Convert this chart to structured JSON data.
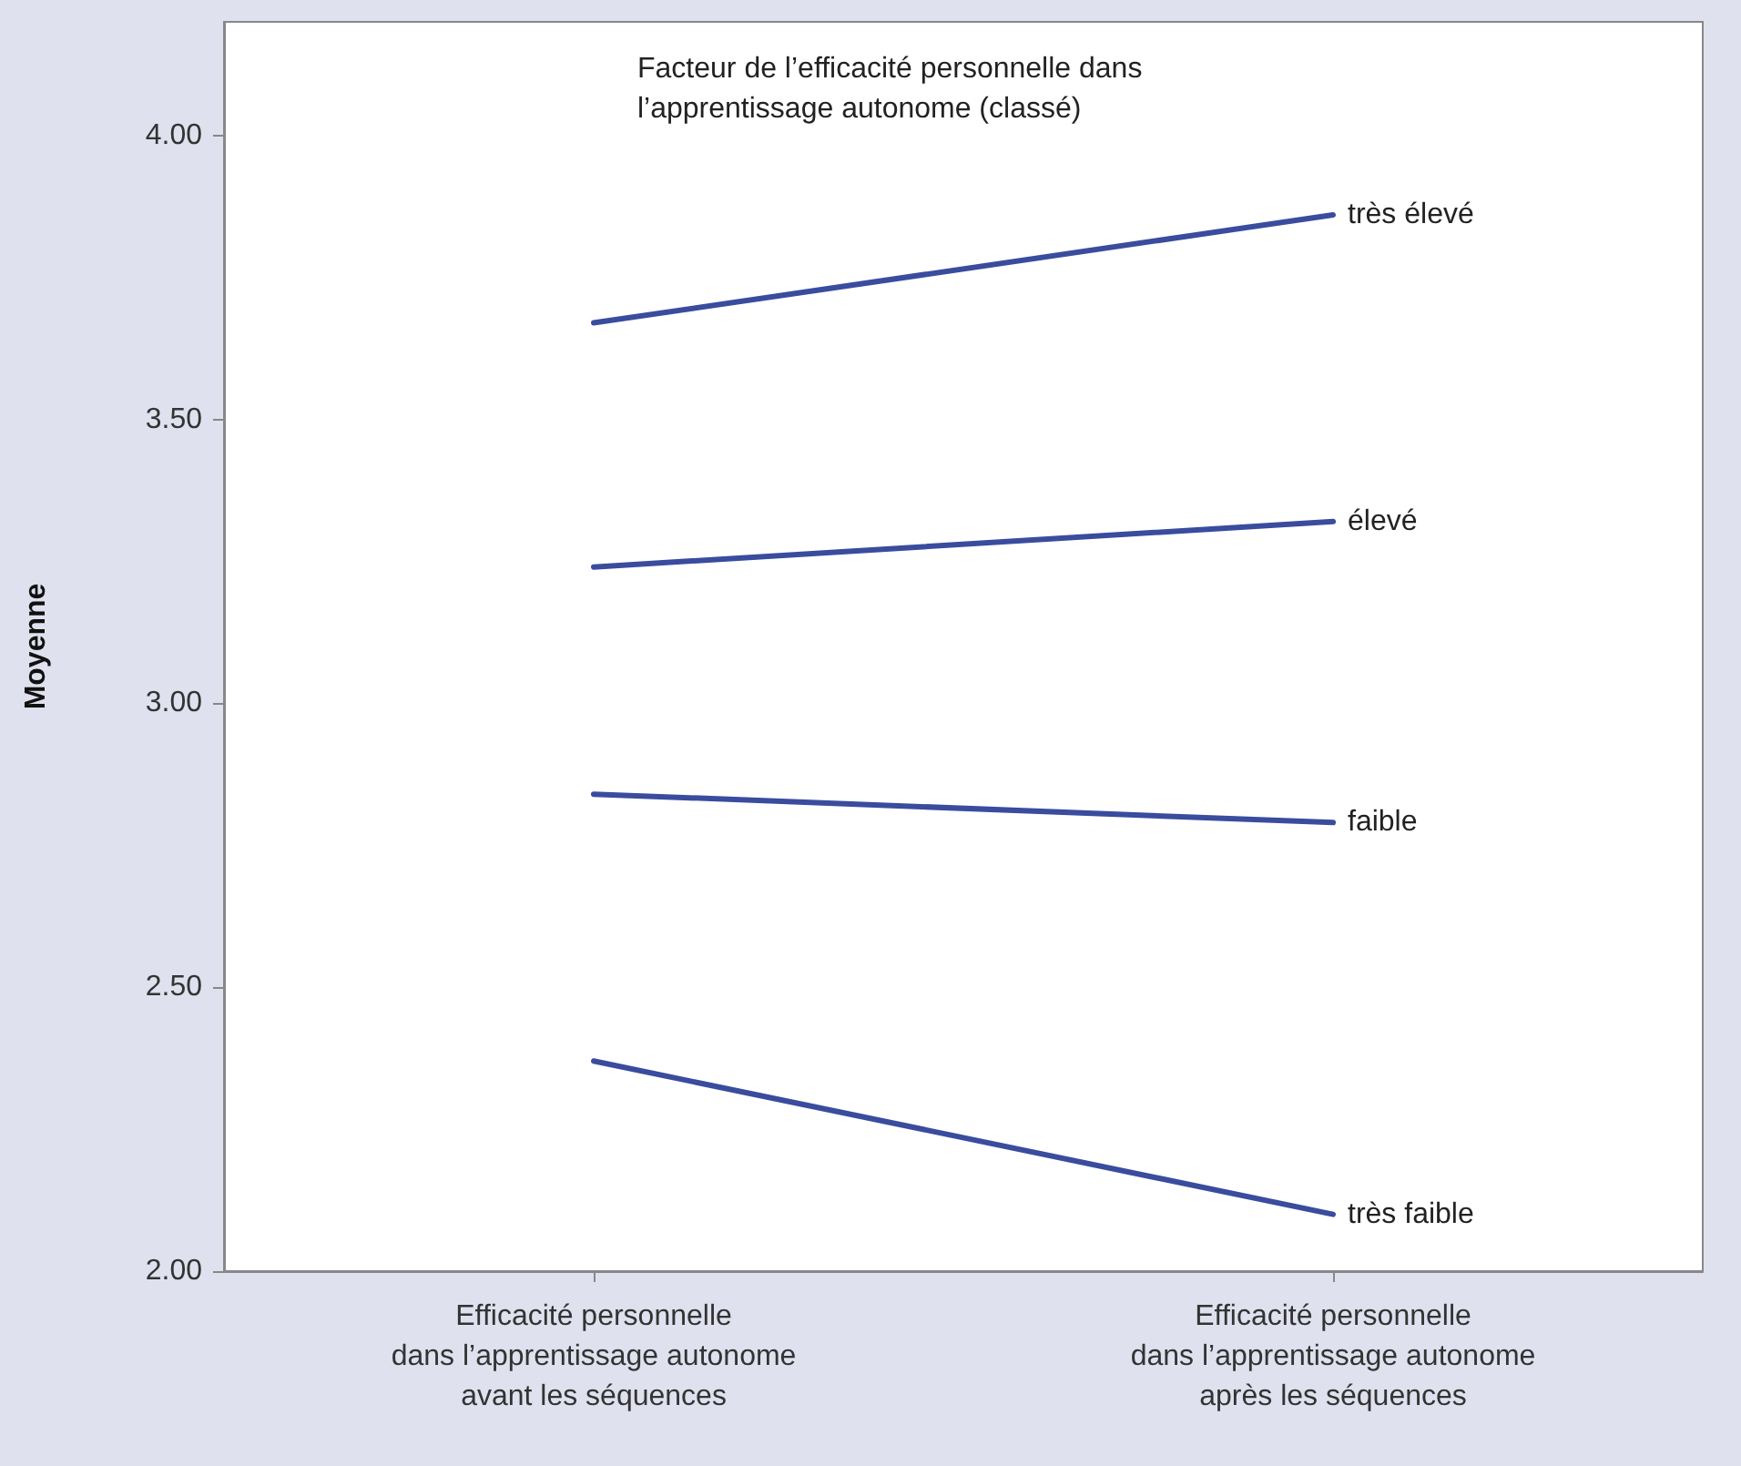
{
  "chart_data": {
    "type": "line",
    "legend_title": "Facteur de l’efficacité personnelle dans l’apprentissage autonome (classé)",
    "ylabel": "Moyenne",
    "categories": [
      "Efficacité personnelle\ndans l’apprentissage autonome\navant les séquences",
      "Efficacité personnelle\ndans l’apprentissage autonome\naprès les séquences"
    ],
    "series": [
      {
        "name": "très élevé",
        "color": "#3a4c9e",
        "values": [
          3.67,
          3.86
        ]
      },
      {
        "name": "élevé",
        "color": "#3a4c9e",
        "values": [
          3.24,
          3.32
        ]
      },
      {
        "name": "faible",
        "color": "#3a4c9e",
        "values": [
          2.84,
          2.79
        ]
      },
      {
        "name": "très faible",
        "color": "#3a4c9e",
        "values": [
          2.37,
          2.1
        ]
      }
    ],
    "ylim": [
      2,
      4.2
    ],
    "yticks": [
      {
        "value": 2,
        "label": "2.00"
      },
      {
        "value": 2.5,
        "label": "2.50"
      },
      {
        "value": 3,
        "label": "3.00"
      },
      {
        "value": 3.5,
        "label": "3.50"
      },
      {
        "value": 4,
        "label": "4.00"
      }
    ],
    "grid": false,
    "legend": false,
    "marker": "none",
    "line_style": "solid"
  }
}
